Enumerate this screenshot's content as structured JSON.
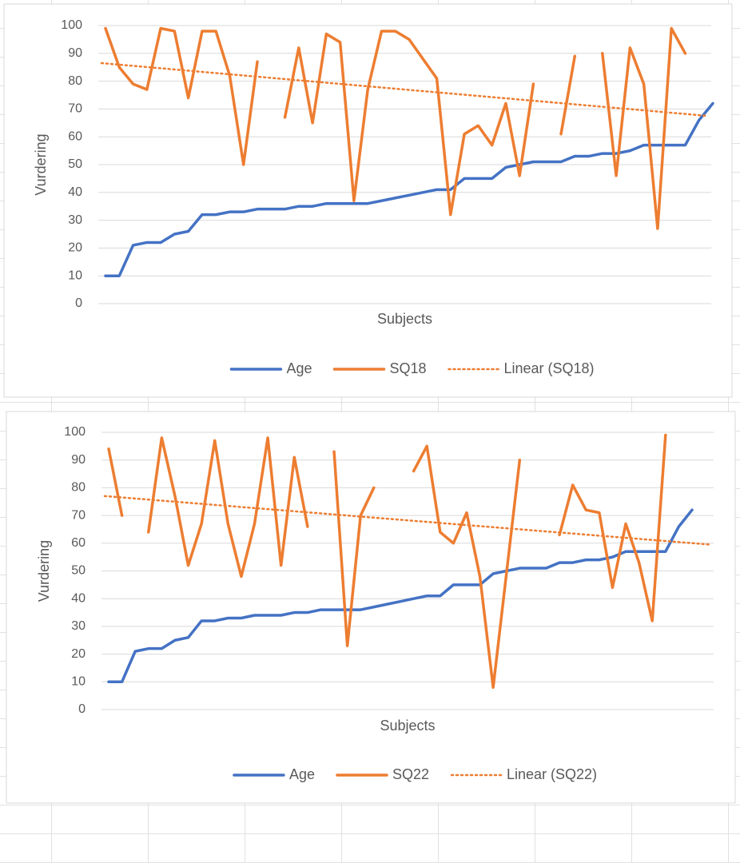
{
  "chart_data": [
    {
      "type": "line",
      "x_label": "Subjects",
      "y_label": "Vurdering",
      "ylim": [
        0,
        100
      ],
      "yticks": [
        0,
        10,
        20,
        30,
        40,
        50,
        60,
        70,
        80,
        90,
        100
      ],
      "grid": true,
      "legend": "bottom",
      "series": [
        {
          "name": "Age",
          "color": "#4472c4",
          "values": [
            10,
            10,
            21,
            22,
            22,
            25,
            26,
            32,
            32,
            33,
            33,
            34,
            34,
            34,
            35,
            35,
            36,
            36,
            36,
            36,
            37,
            38,
            39,
            40,
            41,
            41,
            45,
            45,
            45,
            49,
            50,
            51,
            51,
            51,
            53,
            53,
            54,
            54,
            55,
            57,
            57,
            57,
            57,
            66,
            72
          ]
        },
        {
          "name": "SQ18",
          "color": "#ed7d31",
          "values": [
            99,
            85,
            79,
            77,
            99,
            98,
            74,
            98,
            98,
            82,
            50,
            87,
            null,
            67,
            92,
            65,
            97,
            94,
            37,
            77,
            98,
            98,
            95,
            88,
            81,
            32,
            61,
            64,
            57,
            72,
            46,
            79,
            null,
            61,
            89,
            null,
            90,
            46,
            92,
            79,
            27,
            99,
            90,
            null,
            null
          ]
        },
        {
          "name": "Linear (SQ18)",
          "color": "#ed7d31",
          "trend": true,
          "values": [
            86.5,
            67.5
          ]
        }
      ]
    },
    {
      "type": "line",
      "x_label": "Subjects",
      "y_label": "Vurdering",
      "ylim": [
        0,
        100
      ],
      "yticks": [
        0,
        10,
        20,
        30,
        40,
        50,
        60,
        70,
        80,
        90,
        100
      ],
      "grid": true,
      "legend": "bottom",
      "series": [
        {
          "name": "Age",
          "color": "#4472c4",
          "values": [
            10,
            10,
            21,
            22,
            22,
            25,
            26,
            32,
            32,
            33,
            33,
            34,
            34,
            34,
            35,
            35,
            36,
            36,
            36,
            36,
            37,
            38,
            39,
            40,
            41,
            41,
            45,
            45,
            45,
            49,
            50,
            51,
            51,
            51,
            53,
            53,
            54,
            54,
            55,
            57,
            57,
            57,
            57,
            66,
            72
          ]
        },
        {
          "name": "SQ22",
          "color": "#ed7d31",
          "values": [
            94,
            70,
            null,
            64,
            98,
            77,
            52,
            67,
            97,
            67,
            48,
            67,
            98,
            52,
            91,
            66,
            null,
            93,
            23,
            70,
            80,
            null,
            null,
            86,
            95,
            64,
            60,
            71,
            48,
            8,
            49,
            90,
            null,
            null,
            63,
            81,
            72,
            71,
            44,
            67,
            53,
            32,
            99,
            null,
            null
          ]
        },
        {
          "name": "Linear (SQ22)",
          "color": "#ed7d31",
          "trend": true,
          "values": [
            77,
            59.5
          ]
        }
      ]
    }
  ]
}
